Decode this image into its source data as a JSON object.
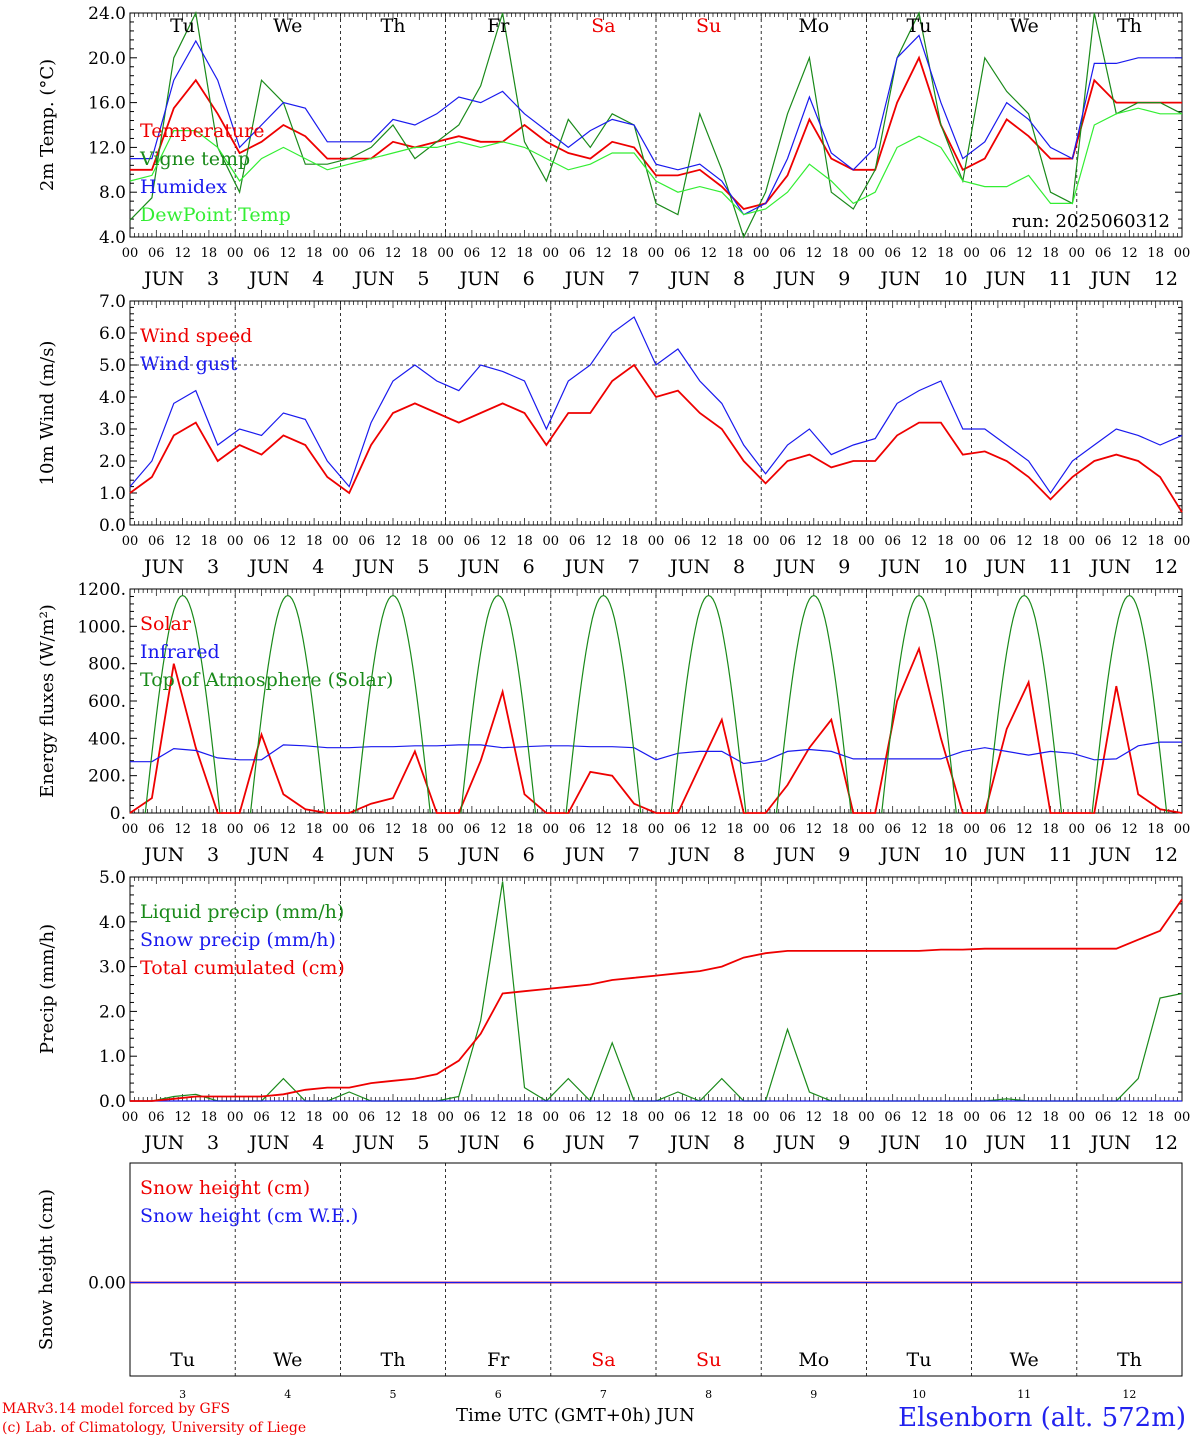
{
  "chart_data": [
    {
      "type": "line",
      "ylabel": "2m Temp. (°C)",
      "ylim": [
        4.0,
        24.0
      ],
      "yticks": [
        "4.0",
        "8.0",
        "12.0",
        "16.0",
        "20.0",
        "24.0"
      ],
      "run_label": "run: 2025060312",
      "legend": [
        "Temperature",
        "Vigne temp",
        "Humidex",
        "DewPoint Temp"
      ],
      "x_step_hours": 6,
      "series": [
        {
          "name": "Temperature",
          "color": "#ee0000",
          "values": [
            10.0,
            10.0,
            15.5,
            18.0,
            15.0,
            11.5,
            12.5,
            14.0,
            13.0,
            11.0,
            11.0,
            11.0,
            12.5,
            12.0,
            12.5,
            13.0,
            12.5,
            12.5,
            14.0,
            12.5,
            11.5,
            11.0,
            12.5,
            12.0,
            9.5,
            9.5,
            10.0,
            8.5,
            6.5,
            7.0,
            9.5,
            14.5,
            11.0,
            10.0,
            10.0,
            16.0,
            20.0,
            14.0,
            10.0,
            11.0,
            14.5,
            13.0,
            11.0,
            11.0,
            18.0,
            16.0,
            16.0,
            16.0,
            16.0
          ]
        },
        {
          "name": "Vigne temp",
          "color": "#1a8a1a",
          "values": [
            5.5,
            7.5,
            20.0,
            24.0,
            12.0,
            8.0,
            18.0,
            16.0,
            10.5,
            10.5,
            11.0,
            12.0,
            14.0,
            11.0,
            12.5,
            14.0,
            17.5,
            24.0,
            12.5,
            9.0,
            14.5,
            12.0,
            15.0,
            14.0,
            7.0,
            6.0,
            15.0,
            10.0,
            4.0,
            8.0,
            15.0,
            20.0,
            8.0,
            6.5,
            10.0,
            20.0,
            24.0,
            14.0,
            9.0,
            20.0,
            17.0,
            15.0,
            8.0,
            7.0,
            24.0,
            15.0,
            16.0,
            16.0,
            15.0
          ]
        },
        {
          "name": "Humidex",
          "color": "#1a1aee",
          "values": [
            11.0,
            11.0,
            18.0,
            21.5,
            18.0,
            12.0,
            14.0,
            16.0,
            15.5,
            12.5,
            12.5,
            12.5,
            14.5,
            14.0,
            15.0,
            16.5,
            16.0,
            17.0,
            15.0,
            13.5,
            12.0,
            13.5,
            14.5,
            14.0,
            10.5,
            10.0,
            10.5,
            9.0,
            6.0,
            7.0,
            11.0,
            16.5,
            11.5,
            10.0,
            12.0,
            20.0,
            22.0,
            16.0,
            11.0,
            12.5,
            16.0,
            14.5,
            12.0,
            11.0,
            19.5,
            19.5,
            20.0,
            20.0,
            20.0
          ]
        },
        {
          "name": "DewPoint Temp",
          "color": "#33ee33",
          "values": [
            9.0,
            9.5,
            13.5,
            13.5,
            12.0,
            9.0,
            11.0,
            12.0,
            11.0,
            10.0,
            10.5,
            11.0,
            11.5,
            12.0,
            12.0,
            12.5,
            12.0,
            12.5,
            12.0,
            11.0,
            10.0,
            10.5,
            11.5,
            11.5,
            9.0,
            8.0,
            8.5,
            8.0,
            6.0,
            6.5,
            8.0,
            10.5,
            9.0,
            7.0,
            8.0,
            12.0,
            13.0,
            12.0,
            9.0,
            8.5,
            8.5,
            9.5,
            7.0,
            7.0,
            14.0,
            15.0,
            15.5,
            15.0,
            15.0
          ]
        }
      ]
    },
    {
      "type": "line",
      "ylabel": "10m Wind (m/s)",
      "ylim": [
        0.0,
        7.0
      ],
      "yticks": [
        "0.0",
        "1.0",
        "2.0",
        "3.0",
        "4.0",
        "5.0",
        "6.0",
        "7.0"
      ],
      "reference_line": 5.0,
      "legend": [
        "Wind speed",
        "Wind gust"
      ],
      "x_step_hours": 6,
      "series": [
        {
          "name": "Wind speed",
          "color": "#ee0000",
          "values": [
            1.0,
            1.5,
            2.8,
            3.2,
            2.0,
            2.5,
            2.2,
            2.8,
            2.5,
            1.5,
            1.0,
            2.5,
            3.5,
            3.8,
            3.5,
            3.2,
            3.5,
            3.8,
            3.5,
            2.5,
            3.5,
            3.5,
            4.5,
            5.0,
            4.0,
            4.2,
            3.5,
            3.0,
            2.0,
            1.3,
            2.0,
            2.2,
            1.8,
            2.0,
            2.0,
            2.8,
            3.2,
            3.2,
            2.2,
            2.3,
            2.0,
            1.5,
            0.8,
            1.5,
            2.0,
            2.2,
            2.0,
            1.5,
            0.4
          ]
        },
        {
          "name": "Wind gust",
          "color": "#1a1aee",
          "values": [
            1.2,
            2.0,
            3.8,
            4.2,
            2.5,
            3.0,
            2.8,
            3.5,
            3.3,
            2.0,
            1.2,
            3.2,
            4.5,
            5.0,
            4.5,
            4.2,
            5.0,
            4.8,
            4.5,
            3.0,
            4.5,
            5.0,
            6.0,
            6.5,
            5.0,
            5.5,
            4.5,
            3.8,
            2.5,
            1.6,
            2.5,
            3.0,
            2.2,
            2.5,
            2.7,
            3.8,
            4.2,
            4.5,
            3.0,
            3.0,
            2.5,
            2.0,
            1.0,
            2.0,
            2.5,
            3.0,
            2.8,
            2.5,
            2.8
          ]
        }
      ]
    },
    {
      "type": "line",
      "ylabel": "Energy fluxes (W/m²)",
      "ylim": [
        0,
        1200
      ],
      "yticks": [
        "0.",
        "200.",
        "400.",
        "600.",
        "800.",
        "1000.",
        "1200."
      ],
      "legend": [
        "Solar",
        "Infrared",
        "Top of Atmosphere (Solar)"
      ],
      "x_step_hours": 6,
      "series": [
        {
          "name": "Solar",
          "color": "#ee0000",
          "values": [
            0,
            80,
            800,
            350,
            0,
            0,
            420,
            100,
            20,
            0,
            0,
            50,
            80,
            330,
            0,
            0,
            280,
            650,
            100,
            0,
            0,
            220,
            200,
            50,
            0,
            0,
            250,
            500,
            0,
            0,
            150,
            350,
            500,
            0,
            0,
            600,
            880,
            400,
            0,
            0,
            450,
            700,
            0,
            0,
            0,
            680,
            100,
            20,
            0
          ]
        },
        {
          "name": "Infrared",
          "color": "#1a1aee",
          "values": [
            275,
            275,
            345,
            335,
            295,
            285,
            285,
            365,
            360,
            350,
            350,
            355,
            355,
            360,
            360,
            365,
            365,
            350,
            355,
            360,
            360,
            355,
            355,
            350,
            285,
            320,
            330,
            330,
            265,
            280,
            330,
            340,
            330,
            290,
            290,
            290,
            290,
            290,
            330,
            350,
            330,
            310,
            330,
            320,
            285,
            290,
            360,
            380,
            380
          ]
        },
        {
          "name": "Top of Atmosphere (Solar)",
          "color": "#1a8a1a",
          "type": "diurnal",
          "peak": 1165,
          "day_start_hour": 3.5,
          "day_end_hour": 20.5
        }
      ]
    },
    {
      "type": "line",
      "ylabel": "Precip (mm/h)",
      "ylim": [
        0.0,
        5.0
      ],
      "yticks": [
        "0.0",
        "1.0",
        "2.0",
        "3.0",
        "4.0",
        "5.0"
      ],
      "legend": [
        "Liquid precip (mm/h)",
        "Snow precip (mm/h)",
        "Total cumulated (cm)"
      ],
      "x_step_hours": 6,
      "series": [
        {
          "name": "Liquid precip (mm/h)",
          "color": "#1a8a1a",
          "values": [
            0,
            0,
            0.1,
            0.15,
            0,
            0,
            0,
            0.5,
            0,
            0,
            0.2,
            0,
            0,
            0,
            0,
            0.1,
            1.8,
            4.9,
            0.3,
            0,
            0.5,
            0,
            1.3,
            0,
            0,
            0.2,
            0,
            0.5,
            0,
            0,
            1.6,
            0.2,
            0,
            0,
            0,
            0,
            0,
            0,
            0,
            0,
            0.05,
            0,
            0,
            0,
            0,
            0,
            0.5,
            2.3,
            2.4
          ]
        },
        {
          "name": "Snow precip (mm/h)",
          "color": "#1a1aee",
          "values": [
            0,
            0,
            0,
            0,
            0,
            0,
            0,
            0,
            0,
            0,
            0,
            0,
            0,
            0,
            0,
            0,
            0,
            0,
            0,
            0,
            0,
            0,
            0,
            0,
            0,
            0,
            0,
            0,
            0,
            0,
            0,
            0,
            0,
            0,
            0,
            0,
            0,
            0,
            0,
            0,
            0,
            0,
            0,
            0,
            0,
            0,
            0,
            0,
            0
          ]
        },
        {
          "name": "Total cumulated (cm)",
          "color": "#ee0000",
          "values": [
            0,
            0,
            0.05,
            0.1,
            0.1,
            0.1,
            0.1,
            0.15,
            0.25,
            0.3,
            0.3,
            0.4,
            0.45,
            0.5,
            0.6,
            0.9,
            1.5,
            2.4,
            2.45,
            2.5,
            2.55,
            2.6,
            2.7,
            2.75,
            2.8,
            2.85,
            2.9,
            3.0,
            3.2,
            3.3,
            3.35,
            3.35,
            3.35,
            3.35,
            3.35,
            3.35,
            3.35,
            3.38,
            3.38,
            3.4,
            3.4,
            3.4,
            3.4,
            3.4,
            3.4,
            3.4,
            3.6,
            3.8,
            4.5
          ]
        }
      ]
    },
    {
      "type": "line",
      "ylabel": "Snow height (cm)",
      "yticks": [
        "0.00"
      ],
      "legend": [
        "Snow height (cm)",
        "Snow height (cm W.E.)"
      ],
      "series": [
        {
          "name": "Snow height (cm)",
          "color": "#ee0000",
          "values": [
            0.0,
            0.0
          ]
        },
        {
          "name": "Snow height (cm W.E.)",
          "color": "#1a1aee",
          "values": [
            0.0,
            0.0
          ]
        }
      ]
    }
  ],
  "days": [
    {
      "abbr": "Tu",
      "num": "3",
      "weekend": false
    },
    {
      "abbr": "We",
      "num": "4",
      "weekend": false
    },
    {
      "abbr": "Th",
      "num": "5",
      "weekend": false
    },
    {
      "abbr": "Fr",
      "num": "6",
      "weekend": false
    },
    {
      "abbr": "Sa",
      "num": "7",
      "weekend": true
    },
    {
      "abbr": "Su",
      "num": "8",
      "weekend": true
    },
    {
      "abbr": "Mo",
      "num": "9",
      "weekend": false
    },
    {
      "abbr": "Tu",
      "num": "10",
      "weekend": false
    },
    {
      "abbr": "We",
      "num": "11",
      "weekend": false
    },
    {
      "abbr": "Th",
      "num": "12",
      "weekend": false
    }
  ],
  "hour_ticks": [
    "00",
    "06",
    "12",
    "18"
  ],
  "month_label": "JUN",
  "colors": {
    "weekday": "#000000",
    "weekend": "#ee0000",
    "station": "#2222ee",
    "credit": "#ee0000"
  },
  "footer": {
    "xaxis_title": "Time UTC (GMT+0h) JUN",
    "model_credit": "MARv3.14 model forced by GFS",
    "lab_credit": "(c) Lab. of Climatology, University of Liege",
    "station": "Elsenborn (alt. 572m)"
  }
}
